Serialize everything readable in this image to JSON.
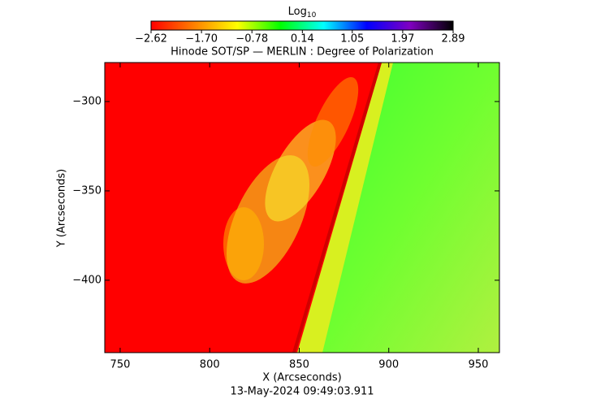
{
  "chart_data": {
    "type": "image",
    "title": "Hinode SOT/SP — MERLIN : Degree of Polarization",
    "x_label": "X (Arcseconds)",
    "y_label": "Y (Arcseconds)",
    "date": "13-May-2024 09:49:03.911",
    "xlim": [
      741.4,
      961.8
    ],
    "ylim": [
      -440.5,
      -278.2
    ],
    "xticks": [
      750,
      800,
      850,
      900,
      950
    ],
    "yticks": [
      {
        "value": -300,
        "label": "−300"
      },
      {
        "value": -350,
        "label": "−350"
      },
      {
        "value": -400,
        "label": "−400"
      }
    ],
    "colorbar": {
      "label": "Log",
      "label_subscript": "10",
      "lim": [
        -2.62,
        2.89
      ],
      "ticks": [
        {
          "value": -2.62,
          "label": "−2.62"
        },
        {
          "value": -1.7,
          "label": "−1.70"
        },
        {
          "value": -0.78,
          "label": "−0.78"
        },
        {
          "value": 0.14,
          "label": "0.14"
        },
        {
          "value": 1.05,
          "label": "1.05"
        },
        {
          "value": 1.97,
          "label": "1.97"
        },
        {
          "value": 2.89,
          "label": "2.89"
        }
      ],
      "colors": [
        "#ff0000",
        "#ff8000",
        "#ffff00",
        "#00ff00",
        "#00ffff",
        "#0000ff",
        "#8000c0",
        "#000000"
      ]
    }
  }
}
